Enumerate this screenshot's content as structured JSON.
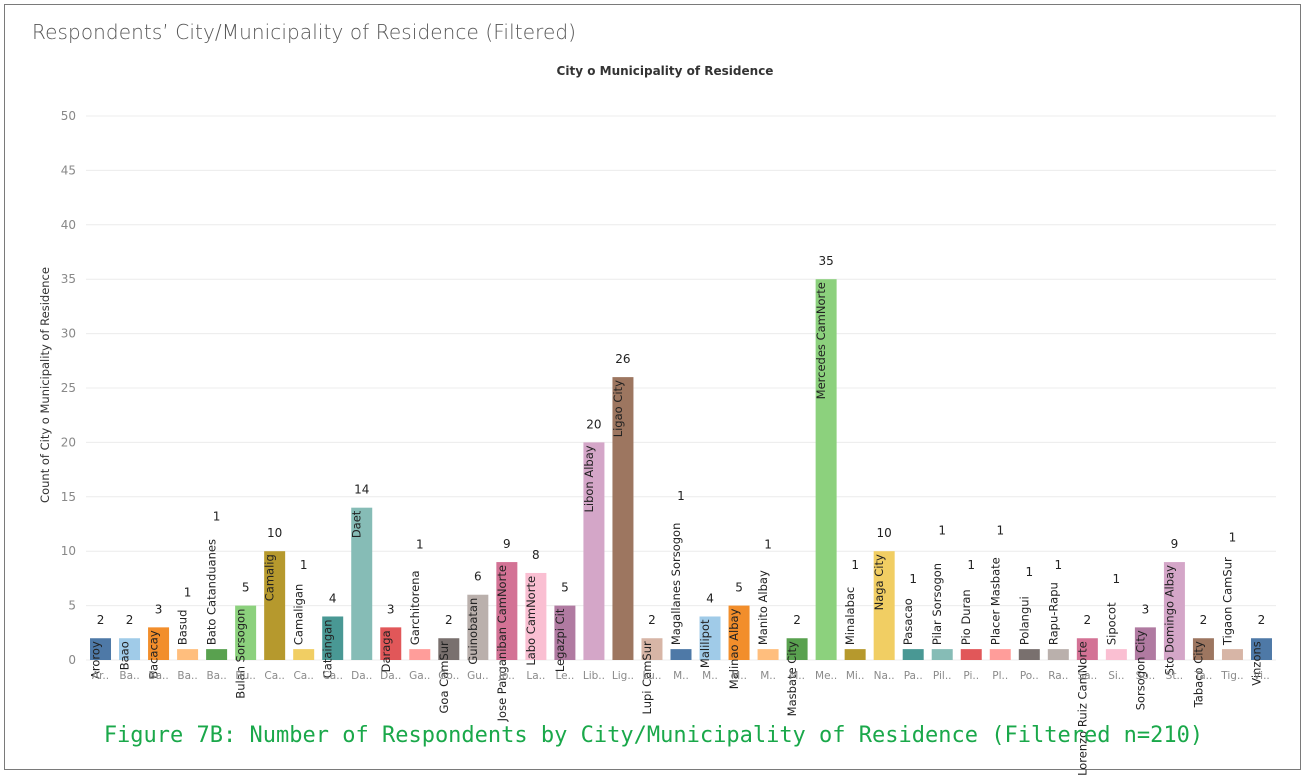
{
  "header": {
    "title": "Respondents’ City/Municipality of Residence (Filtered)"
  },
  "caption": "Figure 7B: Number of Respondents by City/Municipality of Residence (Filtered n=210)",
  "chart_data": {
    "type": "bar",
    "title": "City o Municipality of Residence",
    "xlabel": "",
    "ylabel": "Count of City o Municipality of Residence",
    "ylim": [
      0,
      53
    ],
    "yticks": [
      0,
      5,
      10,
      15,
      20,
      25,
      30,
      35,
      40,
      45,
      50
    ],
    "grid": true,
    "categories": [
      "Aroroy",
      "Baao",
      "Bacacay",
      "Basud",
      "Bato Catanduanes",
      "Bulan Sorsogon",
      "Camalig",
      "Camaligan",
      "Cataingan",
      "Daet",
      "Daraga",
      "Garchitorena",
      "Goa CamSur",
      "Guinobatan",
      "Jose Panganiban CamNorte",
      "Labo CamNorte",
      "Legazpi Cit",
      "Libon Albay",
      "Ligao City",
      "Lupi CamSur",
      "Magallanes Sorsogon",
      "Malilipot",
      "Malinao Albay",
      "Manito Albay",
      "Masbate City",
      "Mercedes CamNorte",
      "Minalabac",
      "Naga City",
      "Pasacao",
      "Pilar Sorsogon",
      "Pio Duran",
      "Placer Masbate",
      "Polangui",
      "Rapu-Rapu",
      "San Lorenzo Ruiz CamNorte",
      "Sipocot",
      "Sorsogon City",
      "Sto Domingo Albay",
      "Tabaco City",
      "Tigaon CamSur",
      "Vinzons"
    ],
    "tick_labels": [
      "Ar..",
      "Ba..",
      "Ba..",
      "Ba..",
      "Ba..",
      "Bu..",
      "Ca..",
      "Ca..",
      "Ca..",
      "Da..",
      "Da..",
      "Ga..",
      "Go..",
      "Gu..",
      "Jo..",
      "La..",
      "Le..",
      "Lib..",
      "Lig..",
      "Lu..",
      "M..",
      "M..",
      "M..",
      "M..",
      "M..",
      "Me..",
      "Mi..",
      "Na..",
      "Pa..",
      "Pil..",
      "Pi..",
      "Pl..",
      "Po..",
      "Ra..",
      "Sa..",
      "Si..",
      "So..",
      "St..",
      "Ta..",
      "Tig..",
      "Vi.."
    ],
    "values": [
      2,
      2,
      3,
      1,
      1,
      5,
      10,
      1,
      4,
      14,
      3,
      1,
      2,
      6,
      9,
      8,
      5,
      20,
      26,
      2,
      1,
      4,
      5,
      1,
      2,
      35,
      1,
      10,
      1,
      1,
      1,
      1,
      1,
      1,
      2,
      1,
      3,
      9,
      2,
      1,
      2
    ],
    "colors": [
      "#4e79a7",
      "#a0cbe8",
      "#f28e2b",
      "#ffbe7d",
      "#59a14f",
      "#8cd17d",
      "#b6992d",
      "#f1ce63",
      "#499894",
      "#86bcb6",
      "#e15759",
      "#ff9d9a",
      "#79706e",
      "#bab0ac",
      "#d37295",
      "#fabfd2",
      "#b07aa1",
      "#d4a6c8",
      "#9d7660",
      "#d7b5a6",
      "#4e79a7",
      "#a0cbe8",
      "#f28e2b",
      "#ffbe7d",
      "#59a14f",
      "#8cd17d",
      "#b6992d",
      "#f1ce63",
      "#499894",
      "#86bcb6",
      "#e15759",
      "#ff9d9a",
      "#79706e",
      "#bab0ac",
      "#d37295",
      "#fabfd2",
      "#b07aa1",
      "#d4a6c8",
      "#9d7660",
      "#d7b5a6",
      "#4e79a7"
    ]
  }
}
